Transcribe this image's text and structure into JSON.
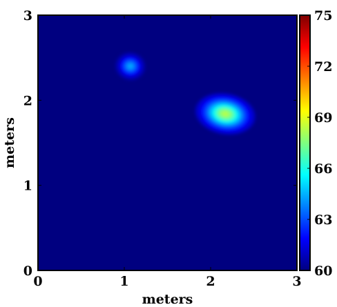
{
  "chart_data": {
    "type": "heatmap",
    "title": "",
    "xlabel": "meters",
    "ylabel": "meters",
    "xlim": [
      0,
      3
    ],
    "ylim": [
      0,
      3
    ],
    "xticks": [
      0,
      1,
      2,
      3
    ],
    "yticks": [
      0,
      1,
      2,
      3
    ],
    "xtick_labels": [
      "0",
      "1",
      "2",
      "3"
    ],
    "ytick_labels": [
      "0",
      "1",
      "2",
      "3"
    ],
    "grid": false,
    "colormap": "jet",
    "background_value": 60,
    "colorbar": {
      "range": [
        60,
        75
      ],
      "ticks": [
        60,
        63,
        66,
        69,
        72,
        75
      ],
      "tick_labels": [
        "60",
        "63",
        "66",
        "69",
        "72",
        "75"
      ],
      "colors": [
        "#00007f",
        "#0000ff",
        "#007fff",
        "#00ffff",
        "#7fff7f",
        "#ffff00",
        "#ff7f00",
        "#ff0000",
        "#7f0000"
      ]
    },
    "hotspots": [
      {
        "x": 1.07,
        "y": 2.4,
        "sx": 0.08,
        "sy": 0.075,
        "peak": 64.5
      },
      {
        "x": 2.17,
        "y": 1.84,
        "sx": 0.16,
        "sy": 0.11,
        "peak": 68.5
      }
    ]
  }
}
